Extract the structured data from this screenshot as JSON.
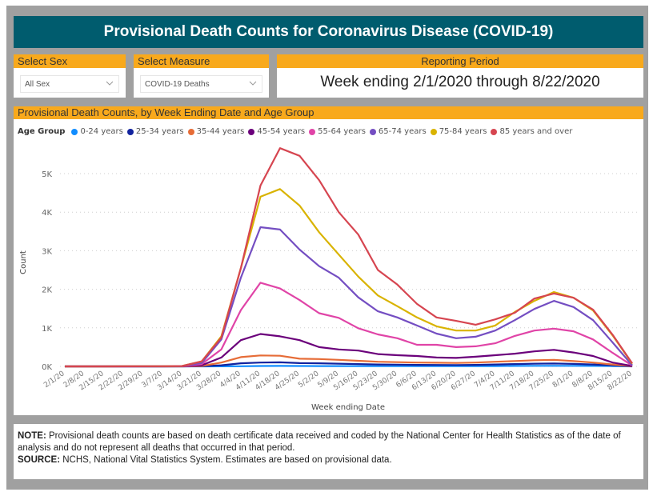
{
  "header": {
    "title": "Provisional Death Counts for Coronavirus Disease (COVID-19)"
  },
  "filters": {
    "sex": {
      "label": "Select Sex",
      "value": "All Sex"
    },
    "measure": {
      "label": "Select Measure",
      "value": "COVID-19 Deaths"
    }
  },
  "reporting_period": {
    "label": "Reporting Period",
    "value": "Week ending 2/1/2020 through 8/22/2020"
  },
  "chart_panel": {
    "title": "Provisional Death Counts, by Week Ending Date and Age Group"
  },
  "footer": {
    "note_label": "NOTE:",
    "note_text": " Provisional death counts are based on death certificate data received and coded by the National Center for Health Statistics as of the date of analysis and do not represent all deaths that occurred in that period.",
    "source_label": "SOURCE:",
    "source_text": " NCHS, National Vital Statistics System. Estimates are based on provisional data."
  },
  "chart_data": {
    "type": "line",
    "title": "Provisional Death Counts, by Week Ending Date and Age Group",
    "xlabel": "Week ending Date",
    "ylabel": "Count",
    "ylim": [
      0,
      5900
    ],
    "yticks": [
      0,
      1000,
      2000,
      3000,
      4000,
      5000
    ],
    "ytick_labels": [
      "0K",
      "1K",
      "2K",
      "3K",
      "4K",
      "5K"
    ],
    "grid": true,
    "legend_title": "Age Group",
    "legend_position": "top-left",
    "x": [
      "2/1/20",
      "2/8/20",
      "2/15/20",
      "2/22/20",
      "2/29/20",
      "3/7/20",
      "3/14/20",
      "3/21/20",
      "3/28/20",
      "4/4/20",
      "4/11/20",
      "4/18/20",
      "4/25/20",
      "5/2/20",
      "5/9/20",
      "5/16/20",
      "5/23/20",
      "5/30/20",
      "6/6/20",
      "6/13/20",
      "6/20/20",
      "6/27/20",
      "7/4/20",
      "7/11/20",
      "7/18/20",
      "7/25/20",
      "8/1/20",
      "8/8/20",
      "8/15/20",
      "8/22/20"
    ],
    "series": [
      {
        "name": "0-24 years",
        "color": "#118dff",
        "values": [
          0,
          0,
          0,
          0,
          0,
          0,
          0,
          0,
          2,
          5,
          10,
          12,
          10,
          9,
          8,
          7,
          6,
          6,
          6,
          6,
          6,
          7,
          9,
          12,
          14,
          15,
          14,
          12,
          8,
          1
        ]
      },
      {
        "name": "25-34 years",
        "color": "#12239e",
        "values": [
          0,
          0,
          0,
          0,
          0,
          0,
          1,
          5,
          30,
          80,
          100,
          105,
          85,
          80,
          70,
          60,
          50,
          45,
          40,
          38,
          36,
          40,
          50,
          60,
          70,
          75,
          65,
          50,
          30,
          3
        ]
      },
      {
        "name": "35-44 years",
        "color": "#e66c37",
        "values": [
          0,
          0,
          0,
          0,
          0,
          0,
          1,
          10,
          100,
          240,
          285,
          275,
          200,
          190,
          170,
          145,
          120,
          110,
          100,
          95,
          90,
          100,
          120,
          140,
          160,
          170,
          140,
          100,
          50,
          5
        ]
      },
      {
        "name": "45-54 years",
        "color": "#6b007b",
        "values": [
          0,
          0,
          0,
          0,
          1,
          1,
          3,
          30,
          230,
          680,
          840,
          780,
          680,
          500,
          440,
          410,
          320,
          290,
          270,
          230,
          220,
          250,
          290,
          330,
          390,
          430,
          360,
          270,
          100,
          10
        ]
      },
      {
        "name": "55-64 years",
        "color": "#e044a7",
        "values": [
          0,
          1,
          1,
          1,
          2,
          3,
          5,
          60,
          440,
          1460,
          2170,
          2020,
          1720,
          1380,
          1260,
          990,
          830,
          730,
          560,
          560,
          500,
          520,
          600,
          790,
          930,
          980,
          910,
          700,
          350,
          20
        ]
      },
      {
        "name": "65-74 years",
        "color": "#744ec2",
        "values": [
          1,
          1,
          1,
          2,
          3,
          5,
          8,
          90,
          700,
          2300,
          3610,
          3550,
          3030,
          2600,
          2300,
          1790,
          1430,
          1270,
          1060,
          850,
          730,
          770,
          930,
          1200,
          1490,
          1700,
          1540,
          1200,
          620,
          30
        ]
      },
      {
        "name": "75-84 years",
        "color": "#d9b300",
        "values": [
          1,
          1,
          1,
          2,
          3,
          5,
          10,
          130,
          780,
          2550,
          4400,
          4600,
          4170,
          3480,
          2900,
          2330,
          1840,
          1560,
          1270,
          1040,
          930,
          930,
          1060,
          1410,
          1700,
          1930,
          1780,
          1450,
          800,
          70
        ]
      },
      {
        "name": "85 years and over",
        "color": "#d64550",
        "values": [
          1,
          1,
          1,
          2,
          3,
          5,
          10,
          130,
          750,
          2550,
          4690,
          5660,
          5460,
          4830,
          4000,
          3420,
          2500,
          2120,
          1620,
          1270,
          1180,
          1080,
          1220,
          1390,
          1760,
          1890,
          1780,
          1470,
          820,
          80
        ]
      }
    ]
  }
}
